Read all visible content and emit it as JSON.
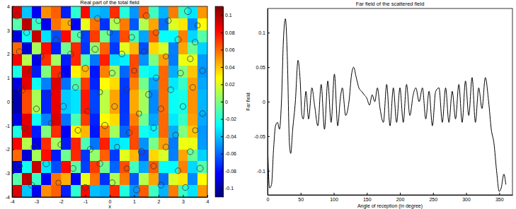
{
  "chart_data": [
    {
      "type": "heatmap",
      "title": "Real part of the total field",
      "x_label": "x",
      "xlim": [
        -4,
        4
      ],
      "ylim": [
        -4,
        4
      ],
      "xticks": [
        -4,
        -3,
        -2,
        -1,
        0,
        1,
        2,
        3,
        4
      ],
      "yticks": [
        -4,
        -3,
        -2,
        -1,
        0,
        1,
        2,
        3,
        4
      ],
      "x": [
        -3.8,
        -3.4,
        -3,
        -2.6,
        -2.2,
        -1.8,
        -1.4,
        -1,
        -0.6,
        -0.2,
        0.2,
        0.6,
        1,
        1.4,
        1.8,
        2.2,
        2.6,
        3,
        3.4,
        3.8
      ],
      "y": [
        3.75,
        3.25,
        2.75,
        2.25,
        1.75,
        1.25,
        0.75,
        0.25,
        -0.25,
        -0.75,
        -1.25,
        -1.75,
        -2.25,
        -2.75,
        -3.25,
        -3.75
      ],
      "cells": [
        [
          0.09,
          -0.04,
          -0.085,
          0.052,
          0.062,
          -0.076,
          -0.018,
          0.081,
          -0.041,
          -0.045,
          0.073,
          -0.02,
          -0.05,
          0.063,
          -0.014,
          -0.044,
          0.056,
          -0.017,
          -0.033,
          0.05
        ],
        [
          -0.009,
          0.097,
          -0.015,
          -0.085,
          0.058,
          0.045,
          -0.083,
          0.023,
          0.058,
          -0.072,
          0.01,
          0.056,
          -0.064,
          0.011,
          0.047,
          -0.059,
          0.02,
          0.033,
          -0.053,
          0.028
        ],
        [
          -0.089,
          -0.025,
          0.095,
          -0.033,
          -0.066,
          0.081,
          -0.008,
          -0.069,
          0.07,
          -0.004,
          -0.061,
          0.066,
          -0.013,
          -0.047,
          0.063,
          -0.026,
          -0.028,
          0.055,
          -0.036,
          -0.009
        ],
        [
          0.06,
          -0.092,
          0.008,
          0.08,
          -0.077,
          -0.004,
          0.074,
          -0.071,
          0.004,
          0.062,
          -0.07,
          0.021,
          0.043,
          -0.066,
          0.036,
          0.019,
          -0.055,
          0.047,
          -0.005,
          -0.037
        ],
        [
          0.083,
          0.012,
          -0.088,
          0.073,
          0.008,
          -0.077,
          0.075,
          -0.011,
          -0.057,
          0.076,
          -0.035,
          -0.03,
          0.067,
          -0.051,
          -0.001,
          0.048,
          -0.056,
          0.024,
          0.023,
          -0.049
        ],
        [
          -0.022,
          0.091,
          -0.077,
          0,
          0.073,
          -0.084,
          0.03,
          0.043,
          -0.078,
          0.055,
          0.007,
          -0.06,
          0.066,
          -0.024,
          -0.03,
          0.06,
          -0.045,
          0.001,
          0.04,
          -0.05
        ],
        [
          -0.088,
          0.088,
          -0.025,
          -0.055,
          0.09,
          -0.058,
          -0.012,
          0.07,
          -0.075,
          0.028,
          0.035,
          -0.07,
          0.055,
          -0.003,
          -0.047,
          0.06,
          -0.032,
          -0.015,
          0.048,
          -0.046
        ],
        [
          -0.1,
          0.067,
          0.009,
          -0.075,
          0.087,
          -0.039,
          -0.033,
          0.078,
          -0.068,
          0.013,
          0.047,
          -0.071,
          0.046,
          0.008,
          -0.053,
          0.059,
          -0.026,
          -0.022,
          0.051,
          -0.043
        ],
        [
          -0.1,
          0.067,
          0.009,
          -0.075,
          0.087,
          -0.039,
          -0.033,
          0.078,
          -0.068,
          0.013,
          0.047,
          -0.071,
          0.046,
          0.008,
          -0.053,
          0.059,
          -0.026,
          -0.022,
          0.051,
          -0.043
        ],
        [
          -0.088,
          0.088,
          -0.025,
          -0.055,
          0.09,
          -0.058,
          -0.012,
          0.07,
          -0.075,
          0.028,
          0.035,
          -0.07,
          0.055,
          -0.003,
          -0.047,
          0.06,
          -0.032,
          -0.015,
          0.048,
          -0.046
        ],
        [
          -0.022,
          0.091,
          -0.077,
          0,
          0.073,
          -0.084,
          0.03,
          0.043,
          -0.078,
          0.055,
          0.007,
          -0.06,
          0.066,
          -0.024,
          -0.03,
          0.06,
          -0.045,
          0.001,
          0.04,
          -0.05
        ],
        [
          0.083,
          0.012,
          -0.088,
          0.073,
          0.008,
          -0.077,
          0.075,
          -0.011,
          -0.057,
          0.076,
          -0.035,
          -0.03,
          0.067,
          -0.051,
          -0.001,
          0.048,
          -0.056,
          0.024,
          0.023,
          -0.049
        ],
        [
          0.06,
          -0.092,
          0.008,
          0.08,
          -0.077,
          -0.004,
          0.074,
          -0.071,
          0.004,
          0.062,
          -0.07,
          0.021,
          0.043,
          -0.066,
          0.036,
          0.019,
          -0.055,
          0.047,
          -0.005,
          -0.037
        ],
        [
          -0.089,
          -0.025,
          0.095,
          -0.033,
          -0.066,
          0.081,
          -0.008,
          -0.069,
          0.07,
          -0.004,
          -0.061,
          0.066,
          -0.013,
          -0.047,
          0.063,
          -0.026,
          -0.028,
          0.055,
          -0.036,
          -0.009
        ],
        [
          -0.009,
          0.097,
          -0.015,
          -0.085,
          0.058,
          0.045,
          -0.083,
          0.023,
          0.058,
          -0.072,
          0.01,
          0.056,
          -0.064,
          0.011,
          0.047,
          -0.059,
          0.02,
          0.033,
          -0.053,
          0.028
        ],
        [
          0.09,
          -0.04,
          -0.085,
          0.052,
          0.062,
          -0.076,
          -0.018,
          0.081,
          -0.041,
          -0.045,
          0.073,
          -0.02,
          -0.05,
          0.063,
          -0.014,
          -0.044,
          0.056,
          -0.017,
          -0.033,
          0.05
        ]
      ],
      "color_range": [
        -0.11,
        0.11
      ],
      "color_ticks": [
        -0.1,
        -0.08,
        -0.06,
        -0.04,
        -0.02,
        0,
        0.02,
        0.04,
        0.06,
        0.08,
        0.1
      ],
      "series": [
        {
          "type": "scatter",
          "marker": "circle",
          "color": "#333333",
          "x": [
            -3.8,
            -2.9,
            -1.6,
            -0.5,
            0.3,
            1.5,
            2.4,
            3.2,
            3.6,
            -3.4,
            -2.2,
            -1.2,
            0,
            0.9,
            1.9,
            2.8,
            3.5,
            -3.7,
            -2.8,
            -1.6,
            -0.6,
            0.5,
            1.4,
            2.3,
            3.3,
            -3.2,
            -2,
            -1,
            0.1,
            1,
            1.9,
            2.9,
            3.8,
            -3.6,
            -2.5,
            -1.4,
            -0.4,
            0.7,
            1.6,
            2.5,
            3.4,
            -3,
            -1.9,
            -0.9,
            0.2,
            1.2,
            2.1,
            3,
            3.8,
            -3.5,
            -2.4,
            -1.3,
            -0.2,
            0.8,
            1.8,
            2.7,
            3.5,
            -3.1,
            -2,
            -0.8,
            0.3,
            1.3,
            2.3,
            3.3,
            -3.7,
            -2.6,
            -1.5,
            -0.4,
            0.7,
            1.8,
            2.8,
            3.7,
            -3.2,
            -2.1,
            -1,
            0.1,
            1.1,
            2.1,
            3.1
          ],
          "values": [
            3.6,
            3.4,
            3.3,
            3.5,
            3.4,
            3.6,
            3.4,
            3.8,
            3.2,
            2.9,
            2.6,
            2.8,
            2.9,
            2.7,
            2.9,
            2.6,
            2.5,
            2.1,
            1.9,
            2,
            2.2,
            2,
            2.1,
            1.9,
            1.8,
            1.3,
            1.1,
            1.4,
            1.2,
            1.3,
            1,
            1.2,
            1.3,
            0.5,
            0.3,
            0.6,
            0.4,
            0.5,
            0.3,
            0.5,
            0.6,
            -0.3,
            -0.2,
            -0.4,
            -0.2,
            -0.5,
            -0.3,
            -0.2,
            -0.5,
            -1.1,
            -0.9,
            -1.2,
            -1,
            -1.3,
            -1.1,
            -1.4,
            -1.2,
            -1.9,
            -1.8,
            -2,
            -1.9,
            -2.1,
            -1.9,
            -2.1,
            -2.7,
            -2.6,
            -2.8,
            -2.6,
            -2.8,
            -2.7,
            -2.9,
            -2.8,
            -3.5,
            -3.4,
            -3.6,
            -3.4,
            -3.7,
            -3.5,
            -3.6
          ],
          "size": [
            0.13,
            0.12,
            0.11,
            0.12,
            0.12,
            0.13,
            0.12,
            0.14,
            0.11,
            0.12,
            0.13,
            0.12,
            0.11,
            0.12,
            0.12,
            0.13,
            0.12,
            0.12,
            0.11,
            0.12,
            0.13,
            0.12,
            0.12,
            0.11,
            0.12,
            0.12,
            0.12,
            0.13,
            0.12,
            0.11,
            0.12,
            0.12,
            0.12,
            0.14,
            0.12,
            0.12,
            0.11,
            0.12,
            0.13,
            0.12,
            0.12,
            0.12,
            0.13,
            0.12,
            0.12,
            0.11,
            0.12,
            0.12,
            0.12,
            0.12,
            0.11,
            0.12,
            0.13,
            0.12,
            0.12,
            0.12,
            0.11,
            0.12,
            0.12,
            0.12,
            0.11,
            0.13,
            0.12,
            0.12,
            0.12,
            0.13,
            0.12,
            0.12,
            0.11,
            0.12,
            0.12,
            0.13,
            0.12,
            0.11,
            0.12,
            0.12,
            0.13,
            0.12,
            0.12
          ]
        }
      ]
    },
    {
      "type": "line",
      "title": "Far field of the scattered field",
      "x_label": "Angle of reception (in degree)",
      "y_label": "Far field",
      "xlim": [
        0,
        370
      ],
      "ylim": [
        -0.135,
        0.135
      ],
      "xticks": [
        0,
        50,
        100,
        150,
        200,
        250,
        300,
        350
      ],
      "yticks": [
        -0.1,
        -0.05,
        0,
        0.05,
        0.1
      ],
      "series": [
        {
          "color": "#000000",
          "x": [
            0,
            3,
            6,
            9,
            12,
            15,
            18,
            21,
            24,
            27,
            30,
            33,
            35,
            38,
            42,
            46,
            49,
            52,
            54,
            58,
            62,
            67,
            71,
            76,
            81,
            86,
            91,
            96,
            101,
            106,
            110,
            113,
            118,
            123,
            127,
            130,
            134,
            138,
            142,
            146,
            150,
            154,
            158,
            162,
            166,
            170,
            175,
            180,
            185,
            190,
            195,
            200,
            205,
            210,
            215,
            220,
            224,
            229,
            234,
            239,
            244,
            249,
            254,
            259,
            264,
            269,
            274,
            279,
            284,
            289,
            294,
            299,
            304,
            309,
            314,
            319,
            324,
            329,
            334,
            338,
            342,
            346,
            350,
            353,
            357,
            360
          ],
          "values": [
            -0.06,
            -0.125,
            -0.12,
            -0.07,
            -0.035,
            -0.03,
            -0.04,
            0,
            0.09,
            0.12,
            0.06,
            -0.06,
            -0.075,
            -0.04,
            0,
            0.06,
            0.035,
            -0.02,
            -0.025,
            0.015,
            -0.025,
            0.02,
            -0.005,
            -0.035,
            0.025,
            -0.04,
            0.03,
            -0.03,
            0.04,
            -0.035,
            0.005,
            0.02,
            -0.02,
            0,
            0.04,
            0.05,
            0.035,
            0.02,
            0.015,
            0.01,
            0.005,
            -0.005,
            0.01,
            0,
            0.02,
            -0.01,
            -0.03,
            0.025,
            -0.035,
            0.02,
            -0.03,
            0.02,
            -0.03,
            0.025,
            -0.02,
            0.01,
            0.02,
            0,
            0.02,
            -0.025,
            0.015,
            -0.035,
            0.015,
            0.02,
            -0.03,
            0.02,
            -0.03,
            0.015,
            -0.025,
            0.025,
            -0.03,
            0.03,
            -0.02,
            0.035,
            -0.03,
            0.02,
            -0.01,
            0.035,
            0,
            -0.04,
            -0.06,
            -0.1,
            -0.13,
            -0.125,
            -0.105,
            -0.12
          ]
        }
      ]
    }
  ]
}
